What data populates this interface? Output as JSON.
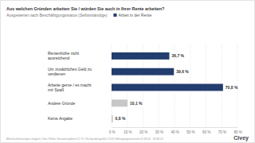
{
  "chart_data": {
    "type": "bar",
    "orientation": "horizontal",
    "title": "Aus welchen Gründen arbeiten Sie / würden Sie auch in Ihrer Rente arbeiten?",
    "subtitle": "Ausgewertet nach Beschäftigungsstatus (Selbstständige)",
    "categories": [
      "Rentenhöhe nicht ausreichend",
      "Um zusätzliches Geld zu verdienen",
      "Arbeite gerne / es macht mir Spaß",
      "Andere Gründe",
      "Keine Angabe"
    ],
    "series": [
      {
        "name": "Arbeit in der Rente",
        "values": [
          36.7,
          39.6,
          70.8,
          10.1,
          0.8
        ],
        "value_labels": [
          "36,7 %",
          "39,6 %",
          "70,8 %",
          "10,1 %",
          "0,8 %"
        ],
        "colors": [
          "#223d6e",
          "#223d6e",
          "#223d6e",
          "#c7c7c7",
          "#c7c7c7"
        ]
      }
    ],
    "xlim": [
      0,
      80
    ],
    "xticks": [
      {
        "value": 0,
        "label": "0 %"
      },
      {
        "value": 10,
        "label": "10 %"
      },
      {
        "value": 20,
        "label": "20 %"
      },
      {
        "value": 30,
        "label": "30 %"
      },
      {
        "value": 40,
        "label": "40 %"
      },
      {
        "value": 50,
        "label": "50 %"
      },
      {
        "value": 60,
        "label": "60 %"
      },
      {
        "value": 70,
        "label": "70 %"
      },
      {
        "value": 80,
        "label": "80 %"
      }
    ],
    "grid": true,
    "legend": "top-left",
    "data_labels": true,
    "note": "Mehrfachnennungen möglich | Stat. Fehler Gesamtergebnis 3,1 % | Stichprobengröße 2.516 | Befragungszeitraum 01.08.24 - 26.08.24",
    "source": "Civey"
  }
}
